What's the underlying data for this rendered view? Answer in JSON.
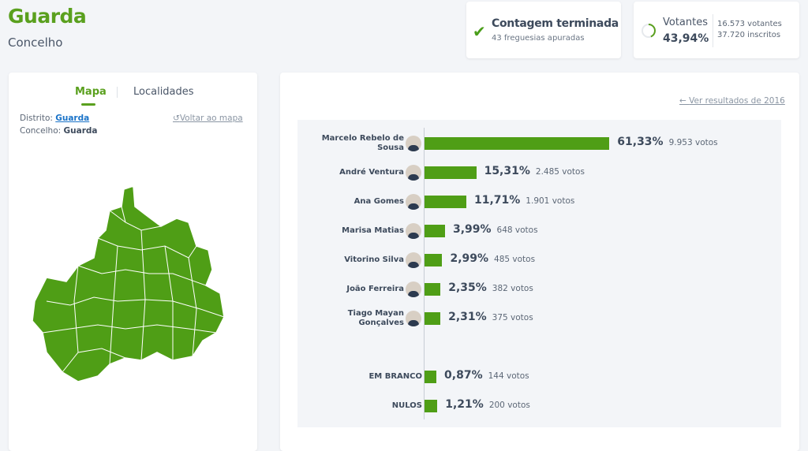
{
  "header": {
    "title": "Guarda",
    "subtitle": "Concelho"
  },
  "status": {
    "title": "Contagem terminada",
    "subtitle": "43 freguesias apuradas"
  },
  "turnout": {
    "label": "Votantes",
    "percent": "43,94%",
    "percent_value": 43.94,
    "voters": "16.573 votantes",
    "registered": "37.720 inscritos"
  },
  "left_panel": {
    "tabs": [
      {
        "label": "Mapa",
        "active": true
      },
      {
        "label": "Localidades",
        "active": false
      }
    ],
    "district_label": "Distrito:",
    "district": "Guarda",
    "municipality_label": "Concelho:",
    "municipality": "Guarda",
    "back_link": "Voltar ao mapa"
  },
  "right_panel": {
    "prev_link": "Ver resultados de 2016"
  },
  "colors": {
    "accent": "#5aa01e",
    "bar": "#4f9e16"
  },
  "results": [
    {
      "name": "Marcelo Rebelo de Sousa",
      "pct": "61,33%",
      "value": 61.33,
      "votes": "9.953 votos",
      "avatar": true
    },
    {
      "name": "André Ventura",
      "pct": "15,31%",
      "value": 15.31,
      "votes": "2.485 votos",
      "avatar": true
    },
    {
      "name": "Ana Gomes",
      "pct": "11,71%",
      "value": 11.71,
      "votes": "1.901 votos",
      "avatar": true
    },
    {
      "name": "Marisa Matias",
      "pct": "3,99%",
      "value": 3.99,
      "votes": "648 votos",
      "avatar": true
    },
    {
      "name": "Vitorino Silva",
      "pct": "2,99%",
      "value": 2.99,
      "votes": "485 votos",
      "avatar": true
    },
    {
      "name": "João Ferreira",
      "pct": "2,35%",
      "value": 2.35,
      "votes": "382 votos",
      "avatar": true
    },
    {
      "name": "Tiago Mayan Gonçalves",
      "pct": "2,31%",
      "value": 2.31,
      "votes": "375 votos",
      "avatar": true
    },
    {
      "name": "EM BRANCO",
      "pct": "0,87%",
      "value": 0.87,
      "votes": "144 votos",
      "avatar": false
    },
    {
      "name": "NULOS",
      "pct": "1,21%",
      "value": 1.21,
      "votes": "200 votos",
      "avatar": false
    }
  ]
}
